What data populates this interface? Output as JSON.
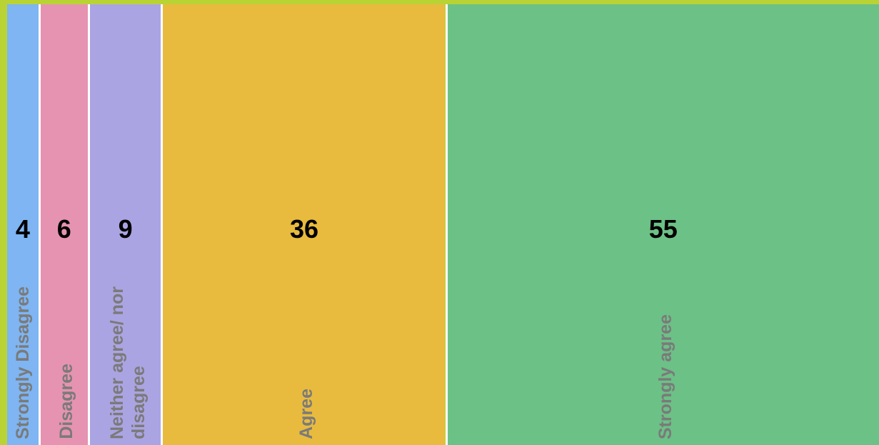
{
  "chart_data": {
    "type": "mosaic",
    "categories": [
      "Strongly Disagree",
      "Disagree",
      "Neither agree/ nor disagree",
      "Agree",
      "Strongly agree"
    ],
    "values": [
      4,
      6,
      9,
      36,
      55
    ],
    "colors": [
      "#7eb5f2",
      "#e593b0",
      "#aba4e2",
      "#e8bb3e",
      "#6cc186"
    ],
    "background": "#b9d335"
  }
}
